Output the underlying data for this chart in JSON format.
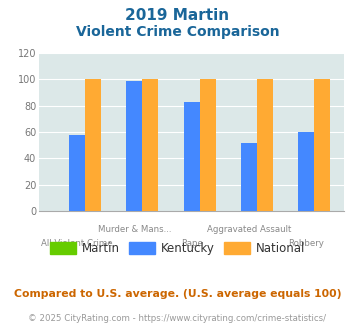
{
  "title_line1": "2019 Martin",
  "title_line2": "Violent Crime Comparison",
  "martin_values": [
    0,
    0,
    0,
    0,
    0
  ],
  "kentucky_values": [
    58,
    99,
    83,
    52,
    60
  ],
  "national_values": [
    100,
    100,
    100,
    100,
    100
  ],
  "martin_color": "#66cc00",
  "kentucky_color": "#4488ff",
  "national_color": "#ffaa33",
  "title_color": "#1a6699",
  "ylim": [
    0,
    120
  ],
  "yticks": [
    0,
    20,
    40,
    60,
    80,
    100,
    120
  ],
  "bg_color": "#dce8e8",
  "grid_color": "#ffffff",
  "top_labels": [
    "",
    "Murder & Mans...",
    "",
    "Aggravated Assault",
    ""
  ],
  "bot_labels": [
    "All Violent Crime",
    "",
    "Rape",
    "",
    "Robbery"
  ],
  "footnote1": "Compared to U.S. average. (U.S. average equals 100)",
  "footnote2": "© 2025 CityRating.com - https://www.cityrating.com/crime-statistics/",
  "footnote1_color": "#cc6600",
  "footnote2_color": "#999999",
  "legend_labels": [
    "Martin",
    "Kentucky",
    "National"
  ]
}
